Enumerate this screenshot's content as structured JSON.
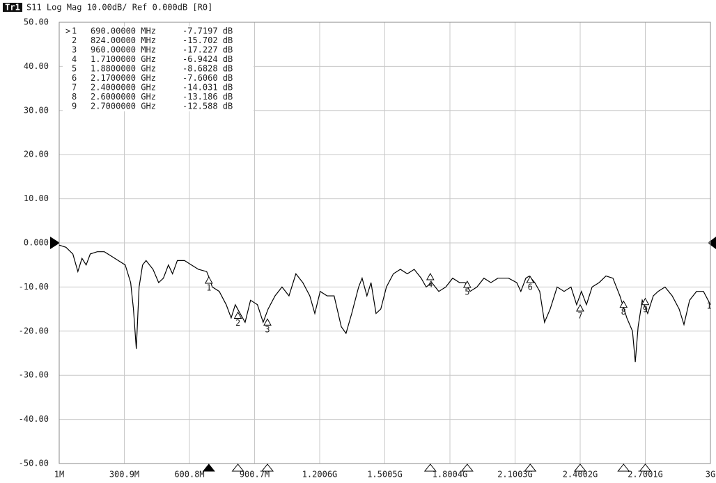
{
  "chart_data": {
    "type": "line",
    "trace_name": "Tr1",
    "title": "S11 Log Mag 10.00dB/ Ref 0.000dB [R0]",
    "trace_label": "1",
    "active_symbol": ">",
    "color": "#000000",
    "grid": true,
    "xlim": [
      1,
      3000
    ],
    "ylim": [
      -50,
      50
    ],
    "xticks": [
      {
        "value": 1,
        "label": "1M"
      },
      {
        "value": 300.9,
        "label": "300.9M"
      },
      {
        "value": 600.8,
        "label": "600.8M"
      },
      {
        "value": 900.7,
        "label": "900.7M"
      },
      {
        "value": 1200.6,
        "label": "1.2006G"
      },
      {
        "value": 1500.5,
        "label": "1.5005G"
      },
      {
        "value": 1800.4,
        "label": "1.8004G"
      },
      {
        "value": 2100.3,
        "label": "2.1003G"
      },
      {
        "value": 2400.2,
        "label": "2.4002G"
      },
      {
        "value": 2700.1,
        "label": "2.7001G"
      },
      {
        "value": 3000,
        "label": "3G"
      }
    ],
    "yticks": [
      {
        "value": 50,
        "label": "50.00"
      },
      {
        "value": 40,
        "label": "40.00"
      },
      {
        "value": 30,
        "label": "30.00"
      },
      {
        "value": 20,
        "label": "20.00"
      },
      {
        "value": 10,
        "label": "10.00"
      },
      {
        "value": 0,
        "label": "0.000"
      },
      {
        "value": -10,
        "label": "-10.00"
      },
      {
        "value": -20,
        "label": "-20.00"
      },
      {
        "value": -30,
        "label": "-30.00"
      },
      {
        "value": -40,
        "label": "-40.00"
      },
      {
        "value": -50,
        "label": "-50.00"
      }
    ],
    "x": [
      1,
      32,
      64,
      87,
      106,
      125,
      144,
      176,
      209,
      241,
      273,
      305,
      330,
      343,
      356,
      369,
      385,
      401,
      433,
      459,
      481,
      504,
      523,
      545,
      578,
      610,
      642,
      680,
      690,
      706,
      738,
      770,
      793,
      812,
      834,
      857,
      882,
      914,
      940,
      963,
      995,
      1027,
      1059,
      1091,
      1123,
      1155,
      1178,
      1203,
      1235,
      1267,
      1300,
      1322,
      1348,
      1380,
      1396,
      1418,
      1437,
      1460,
      1482,
      1508,
      1540,
      1572,
      1604,
      1636,
      1668,
      1691,
      1717,
      1749,
      1781,
      1813,
      1845,
      1871,
      1893,
      1925,
      1957,
      1989,
      2021,
      2070,
      2108,
      2127,
      2150,
      2166,
      2191,
      2214,
      2236,
      2262,
      2294,
      2326,
      2358,
      2384,
      2406,
      2429,
      2455,
      2487,
      2519,
      2551,
      2583,
      2615,
      2641,
      2654,
      2667,
      2686,
      2711,
      2737,
      2759,
      2791,
      2824,
      2856,
      2878,
      2904,
      2936,
      2968,
      3000
    ],
    "values": [
      -0.5,
      -1,
      -2.5,
      -6.5,
      -3.5,
      -5,
      -2.5,
      -2,
      -2,
      -3,
      -4,
      -5,
      -9,
      -15,
      -24,
      -10,
      -5,
      -4,
      -6,
      -9,
      -8,
      -5,
      -7,
      -4,
      -4,
      -5,
      -6,
      -6.5,
      -7.7,
      -10,
      -11,
      -14,
      -17,
      -14,
      -16,
      -18,
      -13,
      -14,
      -18,
      -15,
      -12,
      -10,
      -12,
      -7,
      -9,
      -12,
      -16,
      -11,
      -12,
      -12,
      -19,
      -20.5,
      -16,
      -10,
      -8,
      -12,
      -9,
      -16,
      -15,
      -10,
      -7,
      -6,
      -7,
      -6,
      -8,
      -10,
      -9,
      -11,
      -10,
      -8,
      -9,
      -9,
      -11,
      -10,
      -8,
      -9,
      -8,
      -8,
      -9,
      -11,
      -8,
      -7.5,
      -9,
      -11,
      -18,
      -15,
      -10,
      -11,
      -10,
      -14,
      -11,
      -14,
      -10,
      -9,
      -7.5,
      -8,
      -12,
      -17,
      -20,
      -27,
      -19,
      -13,
      -16,
      -12,
      -11,
      -10,
      -12,
      -15,
      -18.5,
      -13,
      -11,
      -11,
      -14
    ],
    "markers": [
      {
        "label": "1",
        "frequency": "690.00000 MHz",
        "value_label": "-7.7197 dB",
        "x": 690,
        "value": -7.7197
      },
      {
        "label": "2",
        "frequency": "824.00000 MHz",
        "value_label": "-15.702 dB",
        "x": 824,
        "value": -15.702
      },
      {
        "label": "3",
        "frequency": "960.00000 MHz",
        "value_label": "-17.227 dB",
        "x": 960,
        "value": -17.227
      },
      {
        "label": "4",
        "frequency": "1.7100000 GHz",
        "value_label": "-6.9424 dB",
        "x": 1710,
        "value": -6.9424
      },
      {
        "label": "5",
        "frequency": "1.8800000 GHz",
        "value_label": "-8.6828 dB",
        "x": 1880,
        "value": -8.6828
      },
      {
        "label": "6",
        "frequency": "2.1700000 GHz",
        "value_label": "-7.6060 dB",
        "x": 2170,
        "value": -7.606
      },
      {
        "label": "7",
        "frequency": "2.4000000 GHz",
        "value_label": "-14.031 dB",
        "x": 2400,
        "value": -14.031
      },
      {
        "label": "8",
        "frequency": "2.6000000 GHz",
        "value_label": "-13.186 dB",
        "x": 2600,
        "value": -13.186
      },
      {
        "label": "9",
        "frequency": "2.7000000 GHz",
        "value_label": "-12.588 dB",
        "x": 2700,
        "value": -12.588
      }
    ]
  }
}
